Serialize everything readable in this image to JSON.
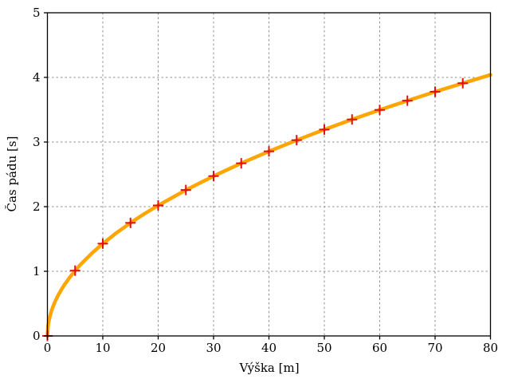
{
  "chart_data": {
    "type": "line",
    "title": "",
    "xlabel": "Výška [m]",
    "ylabel": "Čas pádu [s]",
    "xlim": [
      0,
      80
    ],
    "ylim": [
      0,
      5
    ],
    "xticks": [
      0,
      10,
      20,
      30,
      40,
      50,
      60,
      70,
      80
    ],
    "yticks": [
      0,
      1,
      2,
      3,
      4,
      5
    ],
    "grid": true,
    "grid_color": "#909090",
    "frame_color": "#000000",
    "background": "#ffffff",
    "legend": "none",
    "series": [
      {
        "name": "fall-time-curve",
        "style": "line",
        "color": "#ffa500",
        "width": 4.5,
        "x": [
          0,
          0.1,
          0.25,
          0.5,
          0.75,
          1,
          1.5,
          2,
          2.5,
          3,
          4,
          5,
          6,
          8,
          10,
          12.5,
          15,
          17.5,
          20,
          25,
          30,
          35,
          40,
          45,
          50,
          55,
          60,
          65,
          70,
          75,
          80
        ],
        "y": [
          0,
          0.143,
          0.226,
          0.319,
          0.391,
          0.452,
          0.553,
          0.639,
          0.714,
          0.782,
          0.903,
          1.01,
          1.106,
          1.277,
          1.428,
          1.596,
          1.749,
          1.889,
          2.019,
          2.258,
          2.473,
          2.671,
          2.856,
          3.029,
          3.193,
          3.349,
          3.497,
          3.64,
          3.778,
          3.91,
          4.039
        ],
        "comment": "t = sqrt(2h/9.81)"
      },
      {
        "name": "fall-time-points",
        "style": "marker",
        "marker": "plus",
        "color": "#e01010",
        "width": 2,
        "marker_half_size": 6.5,
        "x": [
          0,
          5,
          10,
          15,
          20,
          25,
          30,
          35,
          40,
          45,
          50,
          55,
          60,
          65,
          70,
          75
        ],
        "y": [
          0,
          1.01,
          1.428,
          1.749,
          2.019,
          2.258,
          2.473,
          2.671,
          2.856,
          3.029,
          3.193,
          3.349,
          3.497,
          3.64,
          3.778,
          3.91
        ]
      }
    ]
  }
}
